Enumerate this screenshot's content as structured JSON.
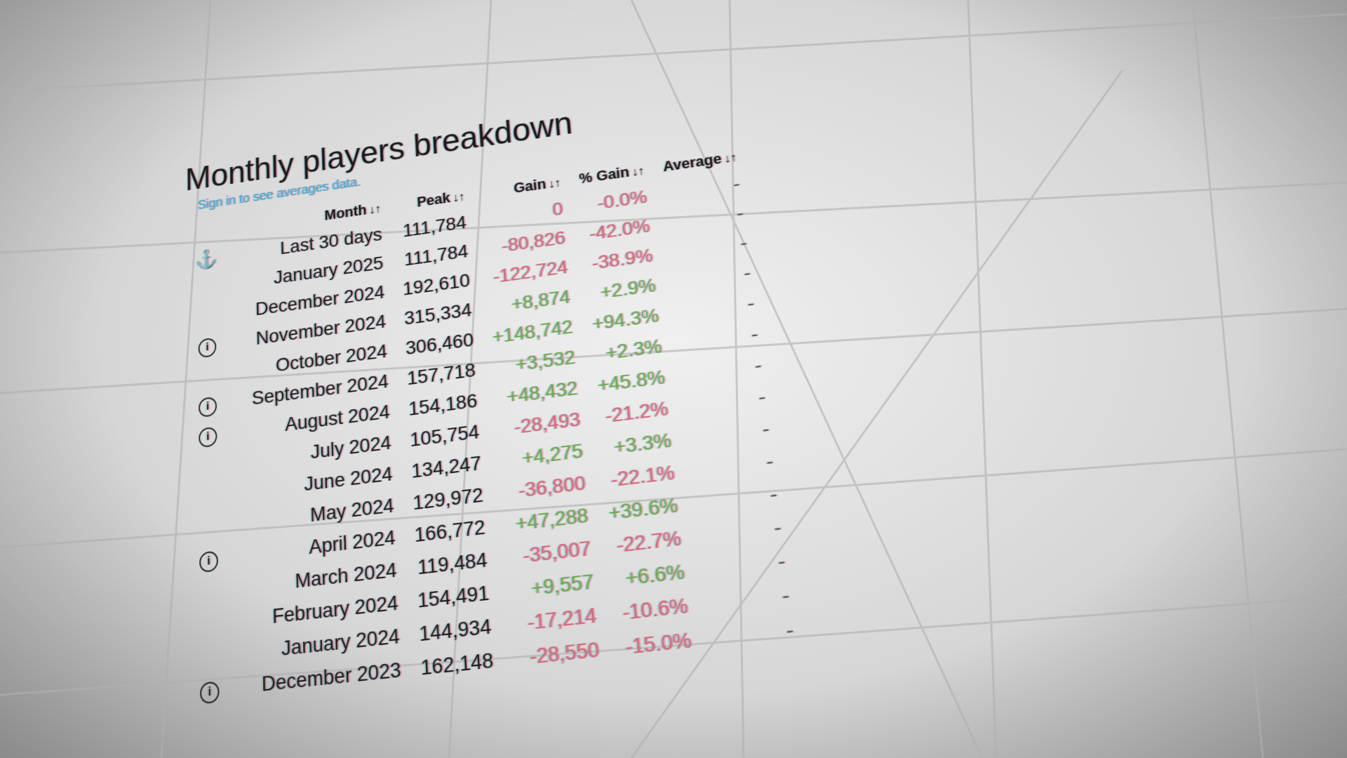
{
  "header": {
    "title": "Monthly players breakdown",
    "subtitle": "Sign in to see averages data."
  },
  "table": {
    "columns": [
      "Month",
      "Peak",
      "Gain",
      "% Gain",
      "Average"
    ],
    "rows": [
      [
        "Last 30 days",
        "111,784",
        "0",
        "-0.0%",
        "-"
      ],
      [
        "January 2025",
        "111,784",
        "-80,826",
        "-42.0%",
        "-"
      ],
      [
        "December 2024",
        "192,610",
        "-122,724",
        "-38.9%",
        "-"
      ],
      [
        "November 2024",
        "315,334",
        "+8,874",
        "+2.9%",
        "-"
      ],
      [
        "October 2024",
        "306,460",
        "+148,742",
        "+94.3%",
        "-"
      ],
      [
        "September 2024",
        "157,718",
        "+3,532",
        "+2.3%",
        "-"
      ],
      [
        "August 2024",
        "154,186",
        "+48,432",
        "+45.8%",
        "-"
      ],
      [
        "July 2024",
        "105,754",
        "-28,493",
        "-21.2%",
        "-"
      ],
      [
        "June 2024",
        "134,247",
        "+4,275",
        "+3.3%",
        "-"
      ],
      [
        "May 2024",
        "129,972",
        "-36,800",
        "-22.1%",
        "-"
      ],
      [
        "April 2024",
        "166,772",
        "+47,288",
        "+39.6%",
        "-"
      ],
      [
        "March 2024",
        "119,484",
        "-35,007",
        "-22.7%",
        "-"
      ],
      [
        "February 2024",
        "154,491",
        "+9,557",
        "+6.6%",
        "-"
      ],
      [
        "January 2024",
        "144,934",
        "-17,214",
        "-10.6%",
        "-"
      ],
      [
        "December 2023",
        "162,148",
        "-28,550",
        "-15.0%",
        "-"
      ]
    ]
  }
}
